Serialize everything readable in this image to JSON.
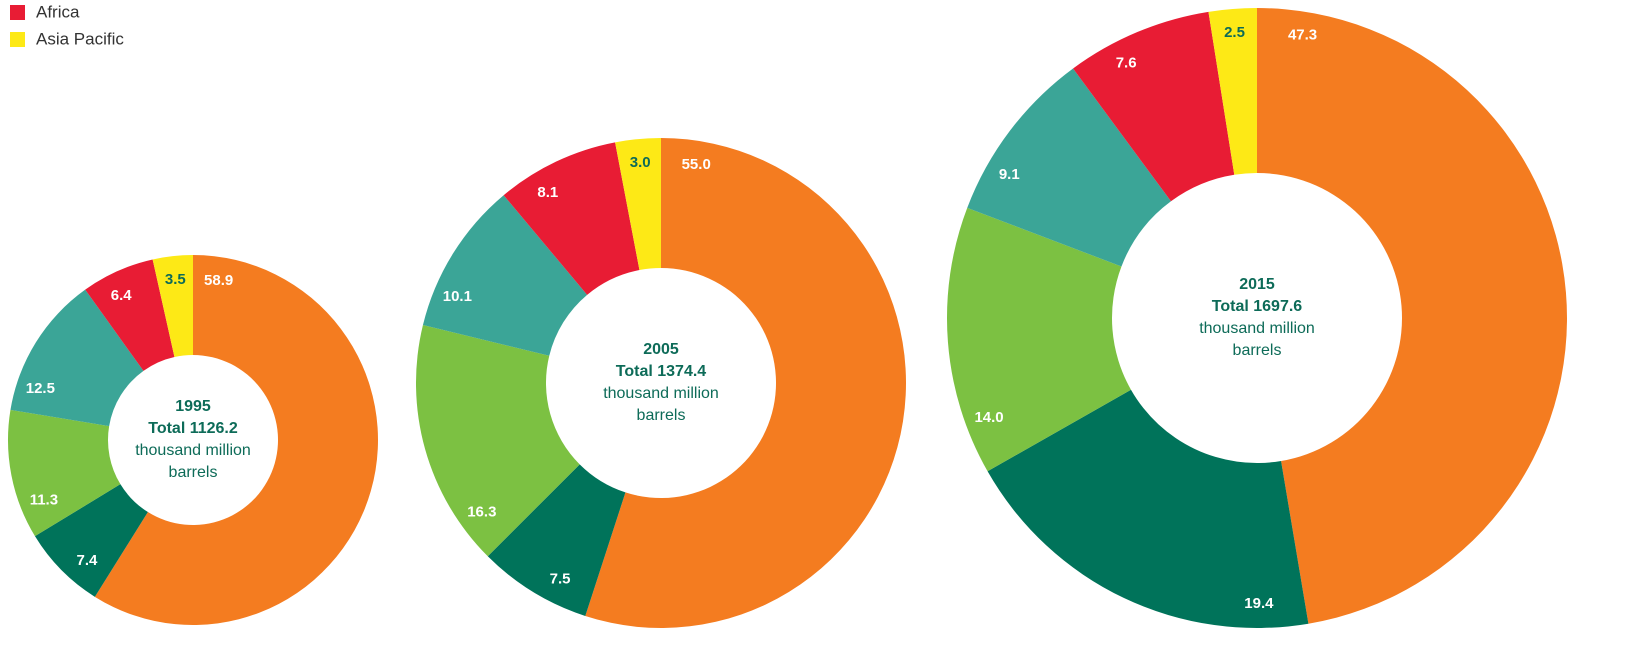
{
  "legend": [
    {
      "name": "Africa",
      "color": "#e81c34"
    },
    {
      "name": "Asia Pacific",
      "color": "#fde916"
    }
  ],
  "chart_data": [
    {
      "type": "pie",
      "title": "1995",
      "total_label": "Total 1126.2",
      "unit": [
        "thousand million",
        "barrels"
      ],
      "values": [
        58.9,
        7.4,
        11.3,
        12.5,
        6.4,
        3.5
      ],
      "colors": [
        "#f47c20",
        "#00735a",
        "#7cc142",
        "#3ba597",
        "#e81c34",
        "#fde916"
      ]
    },
    {
      "type": "pie",
      "title": "2005",
      "total_label": "Total 1374.4",
      "unit": [
        "thousand million",
        "barrels"
      ],
      "values": [
        55.0,
        7.5,
        16.3,
        10.1,
        8.1,
        3.0
      ],
      "value_labels": [
        "55.0",
        "7.5",
        "16.3",
        "10.1",
        "8.1",
        "3.0"
      ],
      "colors": [
        "#f47c20",
        "#00735a",
        "#7cc142",
        "#3ba597",
        "#e81c34",
        "#fde916"
      ]
    },
    {
      "type": "pie",
      "title": "2015",
      "total_label": "Total 1697.6",
      "unit": [
        "thousand million",
        "barrels"
      ],
      "values": [
        47.3,
        19.4,
        14.0,
        9.1,
        7.6,
        2.5
      ],
      "value_labels": [
        "47.3",
        "19.4",
        "14.0",
        "9.1",
        "7.6",
        "2.5"
      ],
      "colors": [
        "#f47c20",
        "#00735a",
        "#7cc142",
        "#3ba597",
        "#e81c34",
        "#fde916"
      ]
    }
  ]
}
